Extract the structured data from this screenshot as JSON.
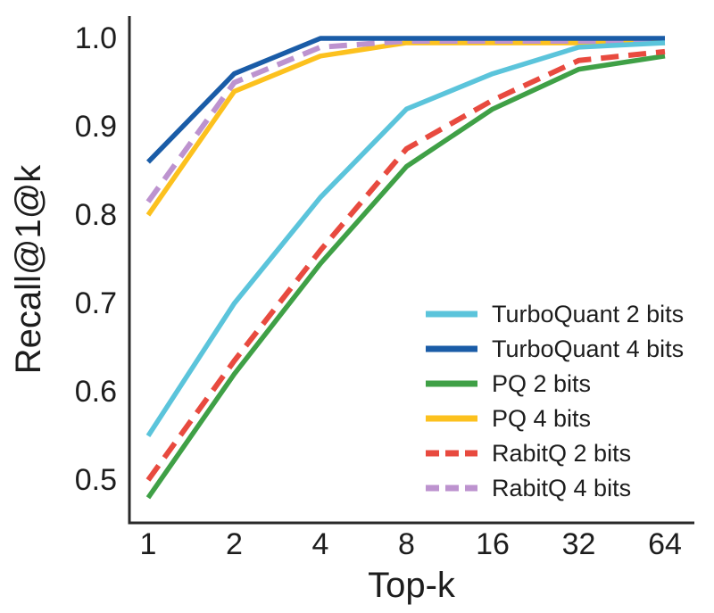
{
  "figure": {
    "background": "#ffffff",
    "text_color": "#1d1d1d",
    "axis_color": "#2a2a2a"
  },
  "chart_data": {
    "type": "line",
    "title": "",
    "xlabel": "Top-k",
    "ylabel": "Recall@1@k",
    "x_scale": "log2",
    "grid": false,
    "legend_position": "inside lower-right",
    "x": [
      1,
      2,
      4,
      8,
      16,
      32,
      64
    ],
    "x_ticklabels": [
      "1",
      "2",
      "4",
      "8",
      "16",
      "32",
      "64"
    ],
    "y_ticks": [
      0.5,
      0.6,
      0.7,
      0.8,
      0.9,
      1.0
    ],
    "y_ticklabels": [
      "0.5",
      "0.6",
      "0.7",
      "0.8",
      "0.9",
      "1.0"
    ],
    "ylim": [
      0.45,
      1.025
    ],
    "series": [
      {
        "name": "TurboQuant 2 bits",
        "color": "#5BC4DB",
        "style": "solid",
        "values": [
          0.55,
          0.7,
          0.82,
          0.92,
          0.96,
          0.99,
          0.995
        ]
      },
      {
        "name": "TurboQuant 4 bits",
        "color": "#1A5CA7",
        "style": "solid",
        "values": [
          0.86,
          0.96,
          1.0,
          1.0,
          1.0,
          1.0,
          1.0
        ]
      },
      {
        "name": "PQ 2 bits",
        "color": "#3FA046",
        "style": "solid",
        "values": [
          0.48,
          0.62,
          0.745,
          0.855,
          0.92,
          0.965,
          0.98
        ]
      },
      {
        "name": "PQ 4 bits",
        "color": "#FCC11E",
        "style": "solid",
        "values": [
          0.8,
          0.94,
          0.98,
          0.995,
          0.995,
          0.995,
          0.995
        ]
      },
      {
        "name": "RabitQ 2 bits",
        "color": "#E84A3F",
        "style": "dashed",
        "values": [
          0.5,
          0.635,
          0.76,
          0.875,
          0.93,
          0.975,
          0.985
        ]
      },
      {
        "name": "RabitQ 4 bits",
        "color": "#BD93CF",
        "style": "dashed",
        "values": [
          0.815,
          0.95,
          0.99,
          0.997,
          0.997,
          0.997,
          0.997
        ]
      }
    ]
  }
}
